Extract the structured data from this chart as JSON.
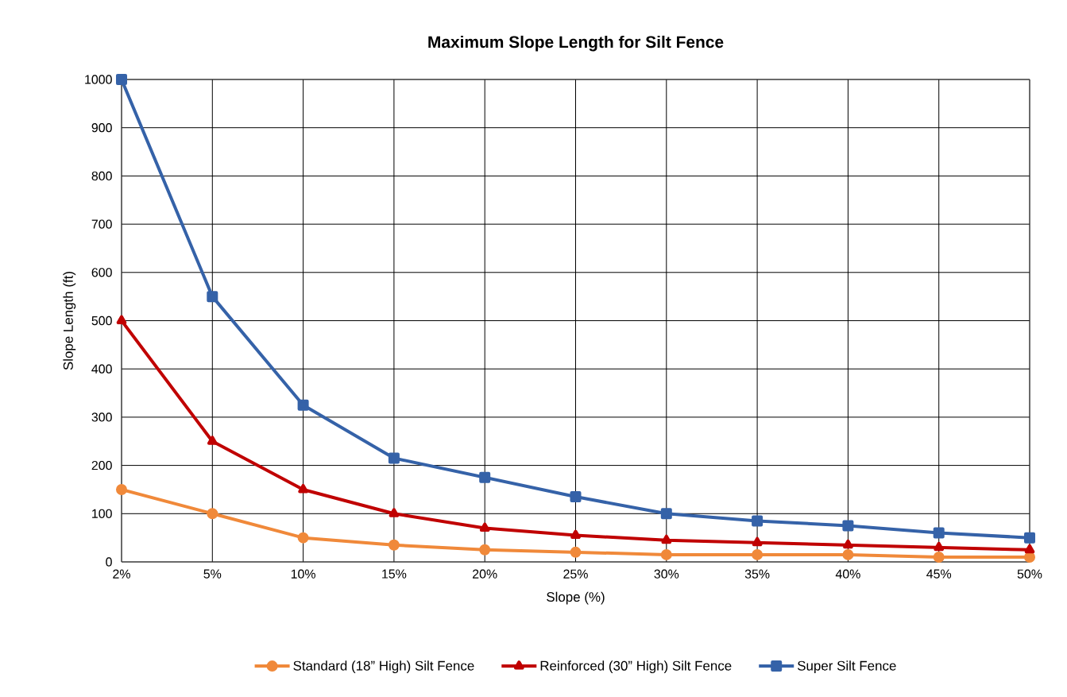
{
  "chart_data": {
    "type": "line",
    "title": "Maximum Slope Length for Silt Fence",
    "xlabel": "Slope (%)",
    "ylabel": "Slope Length (ft)",
    "categories": [
      "2%",
      "5%",
      "10%",
      "15%",
      "20%",
      "25%",
      "30%",
      "35%",
      "40%",
      "45%",
      "50%"
    ],
    "series": [
      {
        "name": "Standard (18” High) Silt Fence",
        "color": "#f0893a",
        "marker": "circle",
        "values": [
          150,
          100,
          50,
          35,
          25,
          20,
          15,
          15,
          15,
          10,
          10
        ]
      },
      {
        "name": "Reinforced (30” High) Silt Fence",
        "color": "#c00000",
        "marker": "triangle",
        "values": [
          500,
          250,
          150,
          100,
          70,
          55,
          45,
          40,
          35,
          30,
          25
        ]
      },
      {
        "name": "Super Silt Fence",
        "color": "#3562a8",
        "marker": "square",
        "values": [
          1000,
          550,
          325,
          215,
          175,
          135,
          100,
          85,
          75,
          60,
          50
        ]
      }
    ],
    "ylim": [
      0,
      1000
    ],
    "yticks": [
      0,
      100,
      200,
      300,
      400,
      500,
      600,
      700,
      800,
      900,
      1000
    ],
    "grid": true,
    "legend": "bottom",
    "line_style": "solid"
  }
}
